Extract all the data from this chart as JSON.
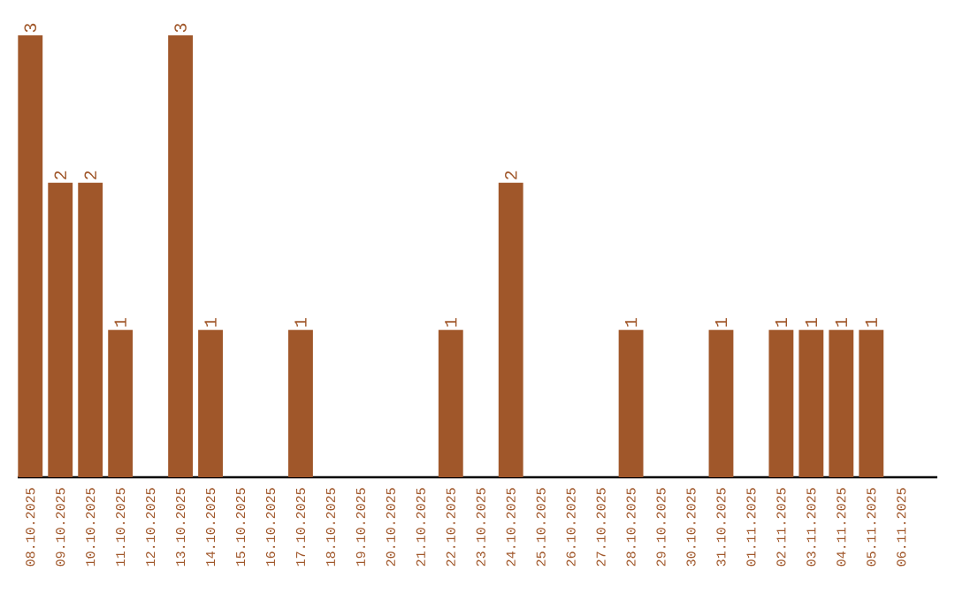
{
  "chart_data": {
    "type": "bar",
    "categories": [
      "08.10.2025",
      "09.10.2025",
      "10.10.2025",
      "11.10.2025",
      "12.10.2025",
      "13.10.2025",
      "14.10.2025",
      "15.10.2025",
      "16.10.2025",
      "17.10.2025",
      "18.10.2025",
      "19.10.2025",
      "20.10.2025",
      "21.10.2025",
      "22.10.2025",
      "23.10.2025",
      "24.10.2025",
      "25.10.2025",
      "26.10.2025",
      "27.10.2025",
      "28.10.2025",
      "29.10.2025",
      "30.10.2025",
      "31.10.2025",
      "01.11.2025",
      "02.11.2025",
      "03.11.2025",
      "04.11.2025",
      "05.11.2025",
      "06.11.2025"
    ],
    "values": [
      3,
      2,
      2,
      1,
      0,
      3,
      1,
      0,
      0,
      1,
      0,
      0,
      0,
      0,
      1,
      0,
      2,
      0,
      0,
      0,
      1,
      0,
      0,
      1,
      0,
      1,
      1,
      1,
      1,
      0
    ],
    "value_labels": [
      "3",
      "2",
      "2",
      "1",
      null,
      "3",
      "1",
      null,
      null,
      "1",
      null,
      null,
      null,
      null,
      "1",
      null,
      "2",
      null,
      null,
      null,
      "1",
      null,
      null,
      "1",
      null,
      "1",
      "1",
      "1",
      "1",
      null
    ],
    "color": "#a0572a",
    "tick_labels": "x"
  }
}
